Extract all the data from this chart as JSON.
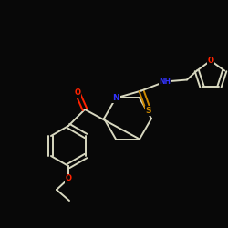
{
  "background_color": "#080808",
  "bond_color": "#d8d8c0",
  "atom_colors": {
    "O": "#ff2200",
    "N": "#3333ff",
    "S": "#cc8800",
    "C": "#d8d8c0"
  },
  "fig_size": [
    2.5,
    2.5
  ],
  "dpi": 100
}
